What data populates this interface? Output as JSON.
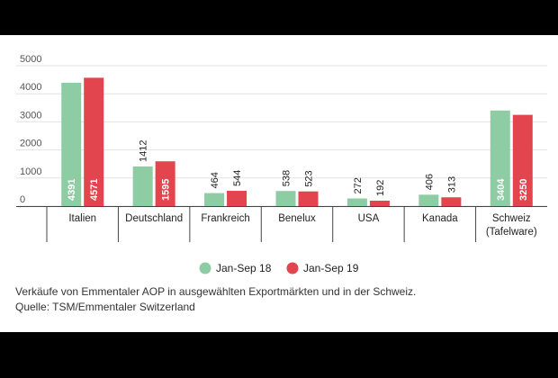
{
  "chart_data": {
    "type": "bar",
    "categories": [
      "Italien",
      "Deutschland",
      "Frankreich",
      "Benelux",
      "USA",
      "Kanada",
      "Schweiz (Tafelware)"
    ],
    "category_lines": [
      [
        "Italien"
      ],
      [
        "Deutschland"
      ],
      [
        "Frankreich"
      ],
      [
        "Benelux"
      ],
      [
        "USA"
      ],
      [
        "Kanada"
      ],
      [
        "Schweiz",
        "(Tafelware)"
      ]
    ],
    "series": [
      {
        "name": "Jan-Sep 18",
        "color": "#8ecca4",
        "values": [
          4391,
          1412,
          464,
          538,
          272,
          406,
          3404
        ]
      },
      {
        "name": "Jan-Sep 19",
        "color": "#e3454f",
        "values": [
          4571,
          1595,
          544,
          523,
          192,
          313,
          3250
        ]
      }
    ],
    "yticks": [
      "5000",
      "4000",
      "3000",
      "2000",
      "1000",
      "0"
    ],
    "ytick_values": [
      5000,
      4000,
      3000,
      2000,
      1000,
      0
    ],
    "ylim": [
      0,
      5000
    ],
    "grid": true,
    "legend_position": "bottom-center",
    "xlabel": "",
    "ylabel": ""
  },
  "caption": {
    "line1": "Verkäufe von Emmentaler AOP in ausgewählten Exportmärkten und in der Schweiz.",
    "line2": "Quelle: TSM/Emmentaler Switzerland"
  }
}
